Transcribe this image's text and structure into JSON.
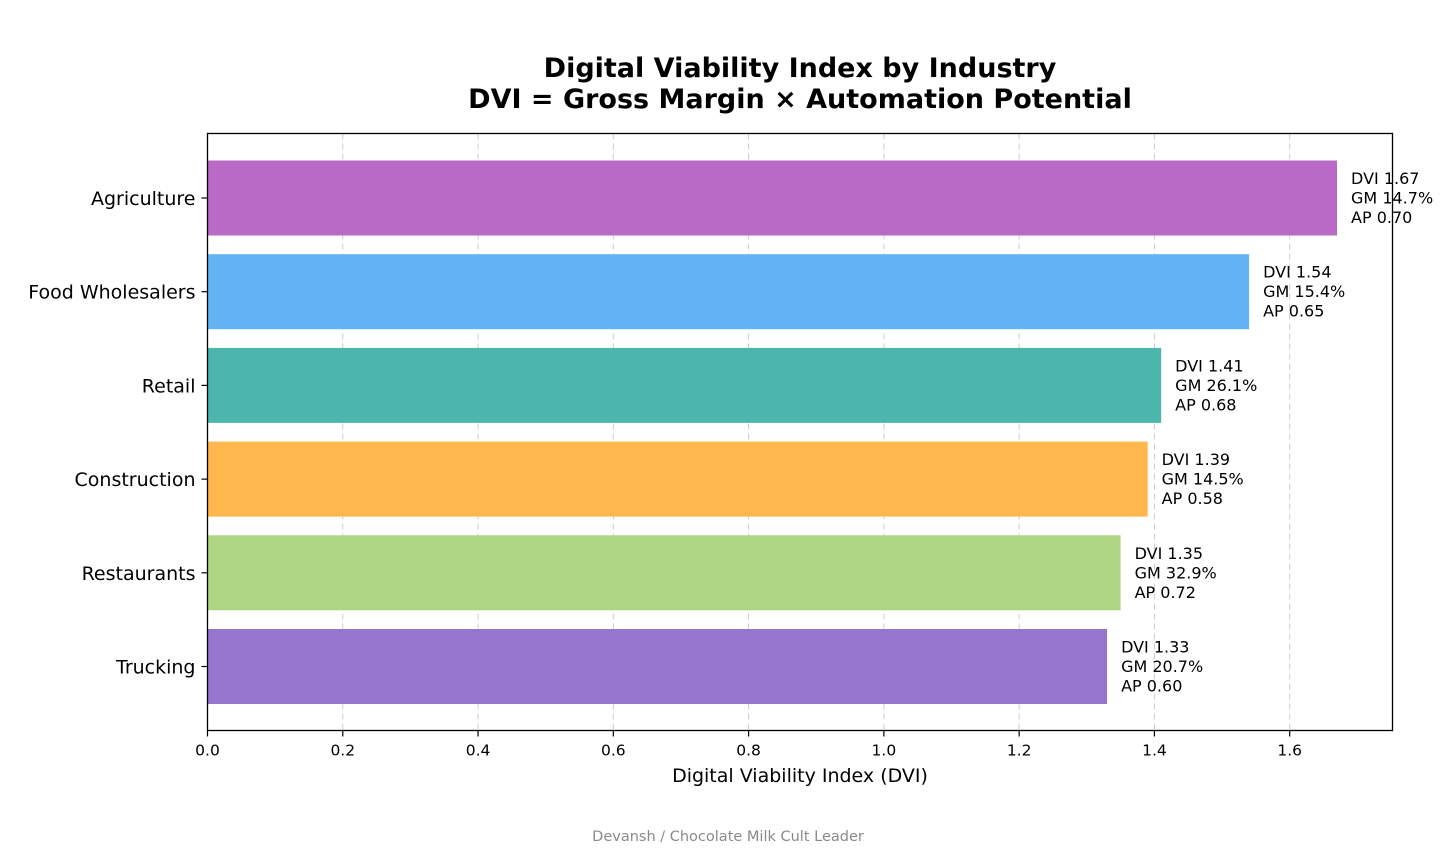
{
  "chart_data": {
    "type": "bar",
    "orientation": "horizontal",
    "title_line1": "Digital Viability Index by Industry",
    "title_line2": "DVI = Gross Margin × Automation Potential",
    "xlabel": "Digital Viability Index (DVI)",
    "ylabel": "",
    "xlim": [
      0,
      1.752
    ],
    "xticks": [
      0.0,
      0.2,
      0.4,
      0.6,
      0.8,
      1.0,
      1.2,
      1.4,
      1.6
    ],
    "xtick_labels": [
      "0.0",
      "0.2",
      "0.4",
      "0.6",
      "0.8",
      "1.0",
      "1.2",
      "1.4",
      "1.6"
    ],
    "grid": "vertical dashed",
    "bars": [
      {
        "category": "Agriculture",
        "value": 1.67,
        "color": "#b86ac6",
        "labels": [
          "DVI 1.67",
          "GM 14.7%",
          "AP 0.70"
        ]
      },
      {
        "category": "Food Wholesalers",
        "value": 1.54,
        "color": "#64b4f5",
        "labels": [
          "DVI 1.54",
          "GM 15.4%",
          "AP 0.65"
        ]
      },
      {
        "category": "Retail",
        "value": 1.41,
        "color": "#4db6ac",
        "labels": [
          "DVI 1.41",
          "GM 26.1%",
          "AP 0.68"
        ]
      },
      {
        "category": "Construction",
        "value": 1.39,
        "color": "#ffb74d",
        "labels": [
          "DVI 1.39",
          "GM 14.5%",
          "AP 0.58"
        ]
      },
      {
        "category": "Restaurants",
        "value": 1.35,
        "color": "#aed581",
        "labels": [
          "DVI 1.35",
          "GM 32.9%",
          "AP 0.72"
        ]
      },
      {
        "category": "Trucking",
        "value": 1.33,
        "color": "#9575cd",
        "labels": [
          "DVI 1.33",
          "GM 20.7%",
          "AP 0.60"
        ]
      }
    ]
  },
  "credit": "Devansh / Chocolate Milk Cult Leader",
  "colors": {
    "grid": "#cccccc",
    "axis": "#000000",
    "credit": "#8a8a8a"
  }
}
